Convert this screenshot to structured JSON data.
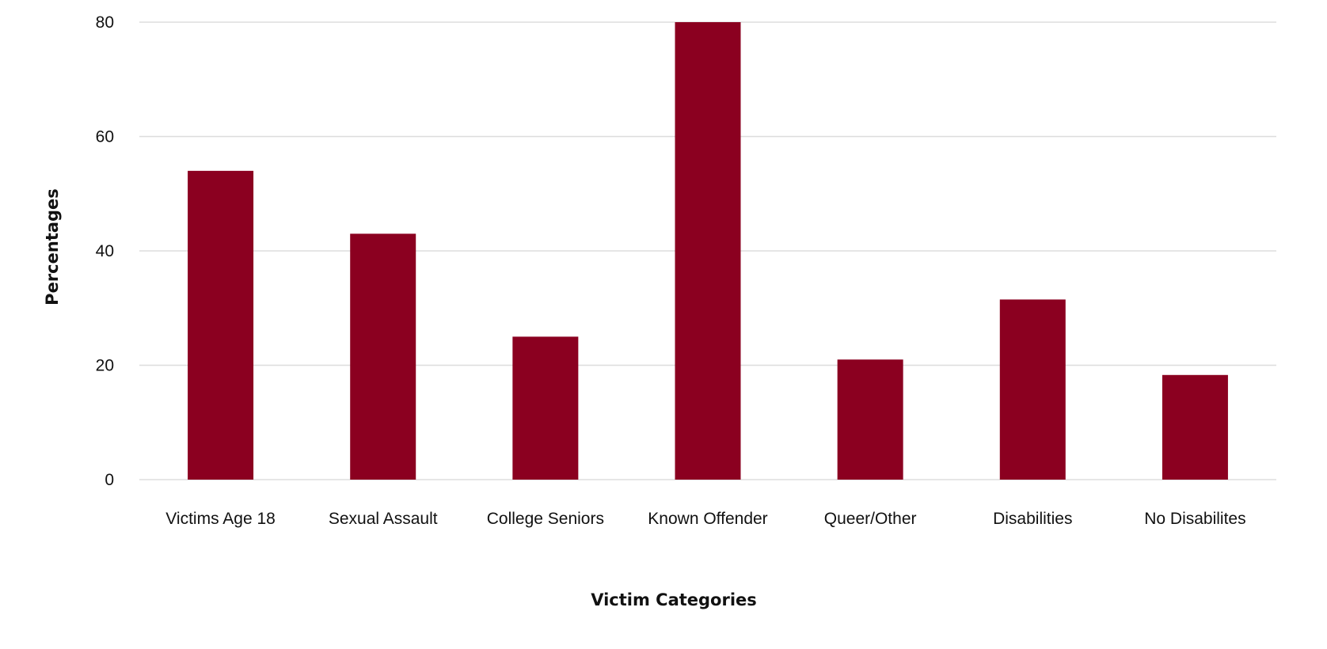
{
  "chart_data": {
    "type": "bar",
    "categories": [
      "Victims Age 18",
      "Sexual Assault",
      "College Seniors",
      "Known Offender",
      "Queer/Other",
      "Disabilities",
      "No Disabilites"
    ],
    "values": [
      54,
      43,
      25,
      80,
      21,
      31.5,
      18.3
    ],
    "xlabel": "Victim Categories",
    "ylabel": "Percentages",
    "ylim": [
      0,
      80
    ],
    "yticks": [
      0,
      20,
      40,
      60,
      80
    ],
    "grid": true,
    "bar_color": "#8B0020",
    "grid_color": "#DDDDDD"
  }
}
